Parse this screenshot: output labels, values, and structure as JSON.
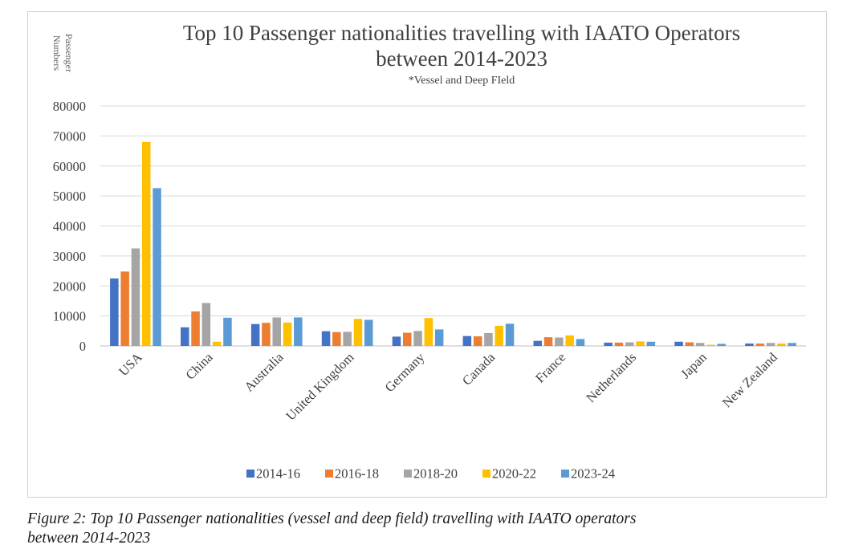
{
  "chart_data": {
    "type": "bar",
    "title_line1": "Top 10 Passenger nationalities travelling with IAATO Operators",
    "title_line2": "between 2014-2023",
    "subtitle": "*Vessel and Deep FIeld",
    "ylabel_line1": "Passenger",
    "ylabel_line2": "Numbers",
    "xlabel": "",
    "ylim": [
      0,
      80000
    ],
    "yticks": [
      0,
      10000,
      20000,
      30000,
      40000,
      50000,
      60000,
      70000,
      80000
    ],
    "grid": true,
    "legend_position": "bottom",
    "categories": [
      "USA",
      "China",
      "Australia",
      "United Kingdom",
      "Germany",
      "Canada",
      "France",
      "Netherlands",
      "Japan",
      "New Zealand"
    ],
    "series": [
      {
        "name": "2014-16",
        "color": "#4472c4",
        "values": [
          22500,
          6200,
          7300,
          4900,
          3100,
          3300,
          1700,
          1100,
          1400,
          800
        ]
      },
      {
        "name": "2016-18",
        "color": "#ed7d31",
        "values": [
          24800,
          11500,
          7700,
          4600,
          4400,
          3200,
          2900,
          1100,
          1200,
          800
        ]
      },
      {
        "name": "2018-20",
        "color": "#a5a5a5",
        "values": [
          32500,
          14300,
          9500,
          4700,
          5000,
          4300,
          2800,
          1200,
          1000,
          1000
        ]
      },
      {
        "name": "2020-22",
        "color": "#ffc000",
        "values": [
          68000,
          1400,
          7800,
          9000,
          9300,
          6700,
          3500,
          1500,
          400,
          800
        ]
      },
      {
        "name": "2023-24",
        "color": "#5b9bd5",
        "values": [
          52600,
          9400,
          9500,
          8700,
          5500,
          7400,
          2300,
          1400,
          700,
          1000
        ]
      }
    ]
  },
  "caption_line1": "Figure 2: Top 10 Passenger nationalities (vessel and deep field) travelling with IAATO operators",
  "caption_line2": "between 2014-2023"
}
